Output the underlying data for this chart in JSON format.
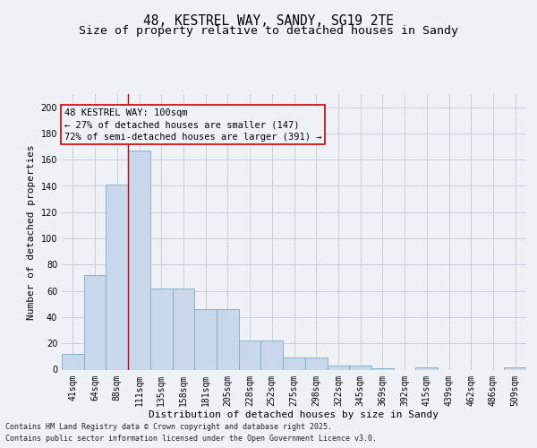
{
  "title_line1": "48, KESTREL WAY, SANDY, SG19 2TE",
  "title_line2": "Size of property relative to detached houses in Sandy",
  "xlabel": "Distribution of detached houses by size in Sandy",
  "ylabel": "Number of detached properties",
  "categories": [
    "41sqm",
    "64sqm",
    "88sqm",
    "111sqm",
    "135sqm",
    "158sqm",
    "181sqm",
    "205sqm",
    "228sqm",
    "252sqm",
    "275sqm",
    "298sqm",
    "322sqm",
    "345sqm",
    "369sqm",
    "392sqm",
    "415sqm",
    "439sqm",
    "462sqm",
    "486sqm",
    "509sqm"
  ],
  "values": [
    12,
    72,
    141,
    167,
    62,
    62,
    46,
    46,
    22,
    22,
    9,
    9,
    3,
    3,
    1,
    0,
    2,
    0,
    0,
    0,
    2
  ],
  "bar_color": "#c8d8ea",
  "bar_edge_color": "#7aaac8",
  "grid_color": "#c0ccd8",
  "vline_color": "#cc0000",
  "vline_x_index": 2.5,
  "annotation_text": "48 KESTREL WAY: 100sqm\n← 27% of detached houses are smaller (147)\n72% of semi-detached houses are larger (391) →",
  "footer_line1": "Contains HM Land Registry data © Crown copyright and database right 2025.",
  "footer_line2": "Contains public sector information licensed under the Open Government Licence v3.0.",
  "ylim": [
    0,
    210
  ],
  "yticks": [
    0,
    20,
    40,
    60,
    80,
    100,
    120,
    140,
    160,
    180,
    200
  ],
  "bg_color": "#eef2f7",
  "title_fontsize": 10.5,
  "subtitle_fontsize": 9.5,
  "axis_label_fontsize": 8,
  "tick_fontsize": 7,
  "footer_fontsize": 6,
  "annot_fontsize": 7.5
}
